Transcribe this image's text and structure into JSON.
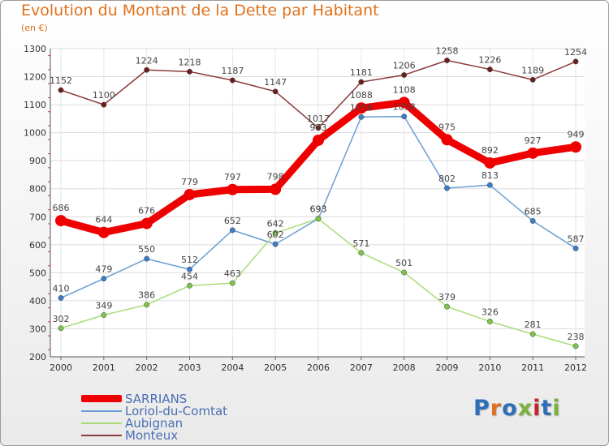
{
  "title": "Evolution du Montant de la Dette par Habitant",
  "subtitle": "(en €)",
  "logo": {
    "text": "Proxiti",
    "letter_colors": [
      "#2c6fb7",
      "#e0711c",
      "#2c6fb7",
      "#7bb33a",
      "#c2262e",
      "#2c6fb7",
      "#7bb33a"
    ]
  },
  "chart_data": {
    "type": "line",
    "x": [
      "2000",
      "2001",
      "2002",
      "2003",
      "2004",
      "2005",
      "2006",
      "2007",
      "2008",
      "2009",
      "2010",
      "2011",
      "2012"
    ],
    "ylim": [
      200,
      1300
    ],
    "yticks": [
      "200",
      "300",
      "400",
      "500",
      "600",
      "700",
      "800",
      "900",
      "1000",
      "1100",
      "1200",
      "1300"
    ],
    "grid": true,
    "legend_position": "bottom-left",
    "series": [
      {
        "name": "SARRIANS",
        "color": "#ee0000",
        "line_width": "thick",
        "values": [
          686,
          644,
          676,
          779,
          797,
          798,
          973,
          1088,
          1108,
          975,
          892,
          927,
          949
        ],
        "labels": [
          "686",
          "644",
          "676",
          "779",
          "797",
          "798",
          "973",
          "1088",
          "1108",
          "975",
          "892",
          "927",
          "949"
        ]
      },
      {
        "name": "Loriol-du-Comtat",
        "color": "#6a9fd4",
        "marker_color": "#3b7cc4",
        "line_width": "thin",
        "values": [
          410,
          479,
          550,
          512,
          652,
          602,
          693,
          1056,
          1058,
          802,
          813,
          685,
          587
        ],
        "labels": [
          "410",
          "479",
          "550",
          "512",
          "652",
          "602",
          "693",
          "1056",
          "1058",
          "802",
          "813",
          "685",
          "587"
        ]
      },
      {
        "name": "Aubignan",
        "color": "#a9dc78",
        "marker_color": "#7ec34a",
        "line_width": "thin",
        "values": [
          302,
          349,
          386,
          454,
          463,
          642,
          693,
          571,
          501,
          379,
          326,
          281,
          238
        ],
        "labels": [
          "302",
          "349",
          "386",
          "454",
          "463",
          "642",
          "693",
          "571",
          "501",
          "379",
          "326",
          "281",
          "238"
        ]
      },
      {
        "name": "Monteux",
        "color": "#8b3a3a",
        "marker_color": "#6a1f1f",
        "line_width": "thin",
        "values": [
          1152,
          1100,
          1224,
          1218,
          1187,
          1147,
          1017,
          1181,
          1206,
          1258,
          1226,
          1189,
          1254
        ],
        "labels": [
          "1152",
          "1100",
          "1224",
          "1218",
          "1187",
          "1147",
          "1017",
          "1181",
          "1206",
          "1258",
          "1226",
          "1189",
          "1254"
        ]
      }
    ]
  }
}
